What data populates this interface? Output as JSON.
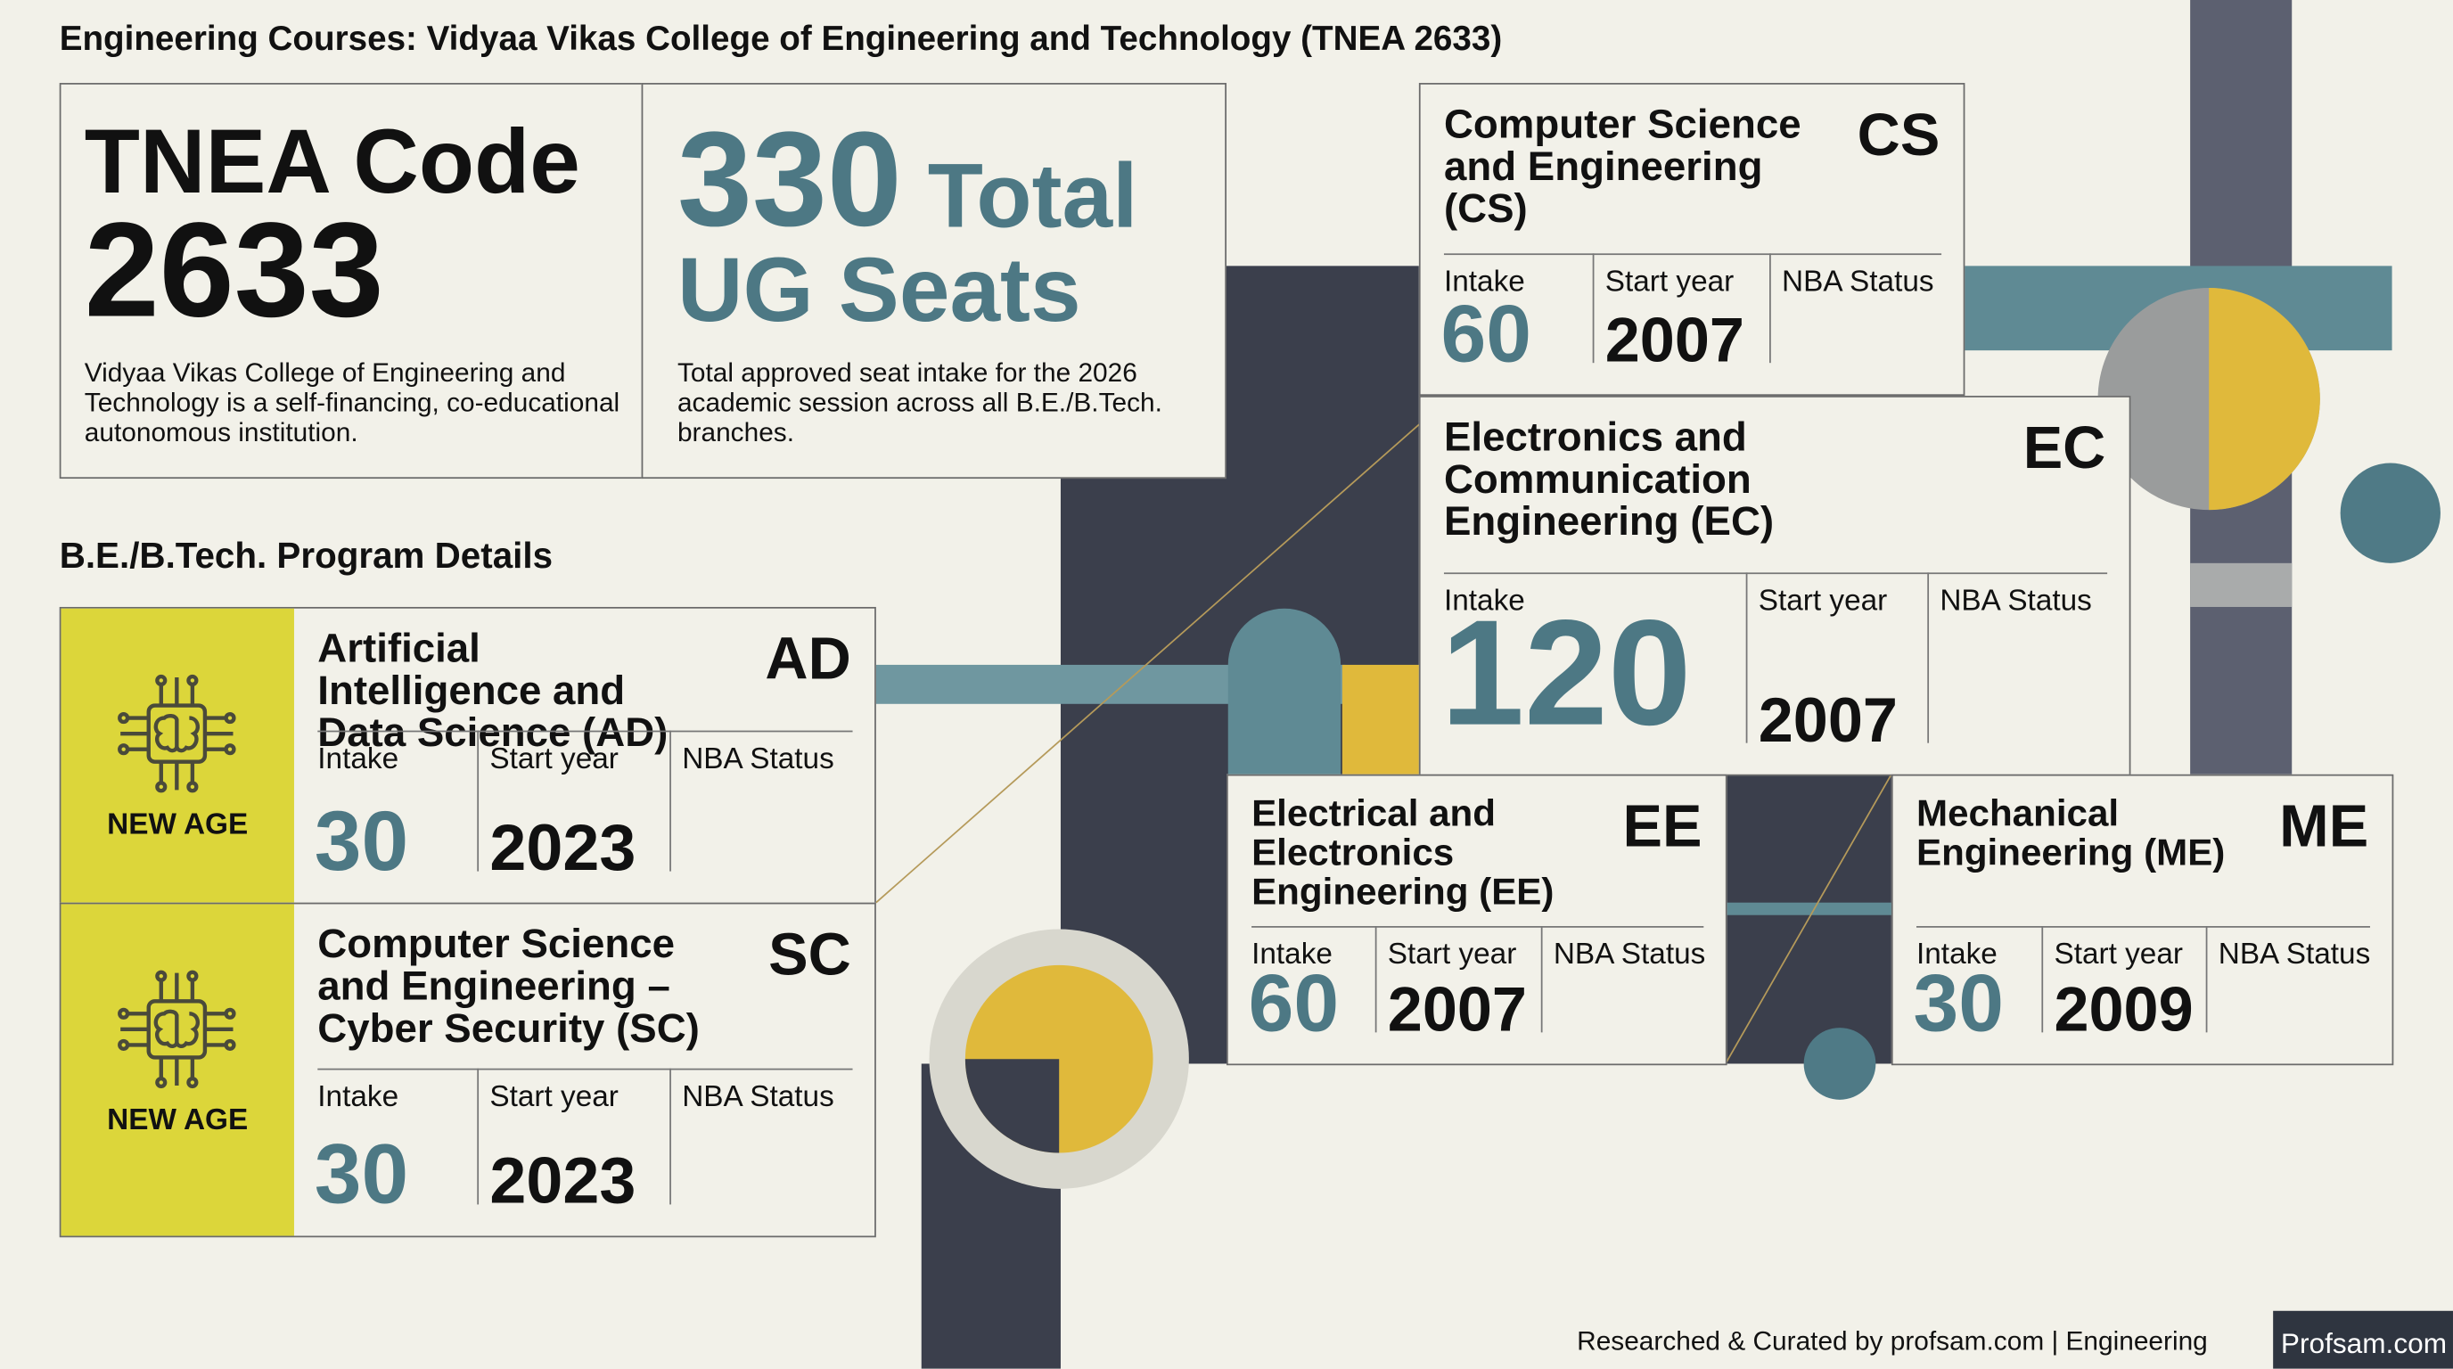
{
  "header": {
    "title": "Engineering Courses: Vidyaa Vikas College of Engineering and Technology (TNEA 2633)"
  },
  "summary": {
    "code_card": {
      "label": "TNEA Code",
      "value": "2633",
      "description": "Vidyaa Vikas College of Engineering and Technology is a self-financing, co-educational autonomous institution."
    },
    "seats_card": {
      "value": "330",
      "label": "Total UG Seats",
      "description": "Total approved seat intake for the 2026 academic session across all B.E./B.Tech. branches."
    }
  },
  "section_title": "B.E./B.Tech. Program Details",
  "field_labels": {
    "intake": "Intake",
    "start_year": "Start year",
    "nba_status": "NBA Status"
  },
  "programs": [
    {
      "name": "Artificial Intelligence and Data Science (AD)",
      "code": "AD",
      "intake": "30",
      "start_year": "2023",
      "badge": "NEW AGE"
    },
    {
      "name": "Computer Science and Engineering – Cyber Security (SC)",
      "code": "SC",
      "intake": "30",
      "start_year": "2023",
      "badge": "NEW AGE"
    },
    {
      "name": "Computer Science and Engineering (CS)",
      "code": "CS",
      "intake": "60",
      "start_year": "2007"
    },
    {
      "name": "Electronics and Communication Engineering (EC)",
      "code": "EC",
      "intake": "120",
      "start_year": "2007"
    },
    {
      "name": "Electrical and Electronics Engineering (EE)",
      "code": "EE",
      "intake": "60",
      "start_year": "2007"
    },
    {
      "name": "Mechanical Engineering (ME)",
      "code": "ME",
      "intake": "30",
      "start_year": "2009"
    }
  ],
  "footer": {
    "credit": "Researched & Curated by profsam.com | Engineering",
    "logo": "Profsam.com"
  }
}
